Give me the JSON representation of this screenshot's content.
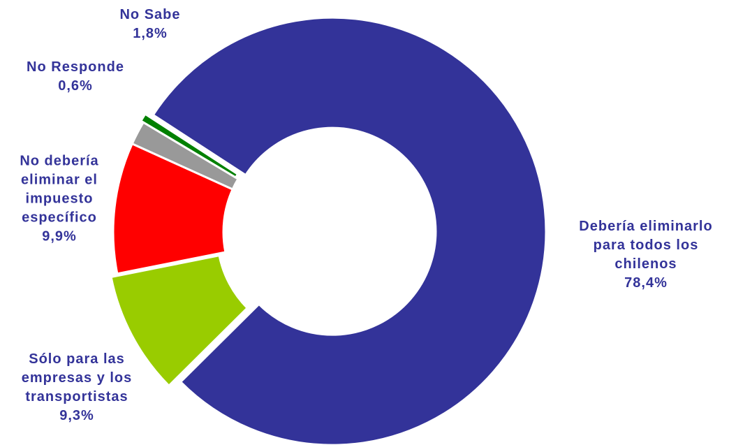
{
  "chart_data": {
    "type": "donut",
    "categories": [
      "Debería eliminarlo para todos los chilenos",
      "Sólo para las empresas y los transportistas",
      "No debería eliminar el impuesto específico",
      "No Sabe",
      "No Responde"
    ],
    "values": [
      78.4,
      9.3,
      9.9,
      1.8,
      0.6
    ],
    "value_labels": [
      "78,4%",
      "9,3%",
      "9,9%",
      "1,8%",
      "0,6%"
    ],
    "colors": [
      "#333399",
      "#99cc00",
      "#ff0000",
      "#999999",
      "#008000"
    ]
  }
}
